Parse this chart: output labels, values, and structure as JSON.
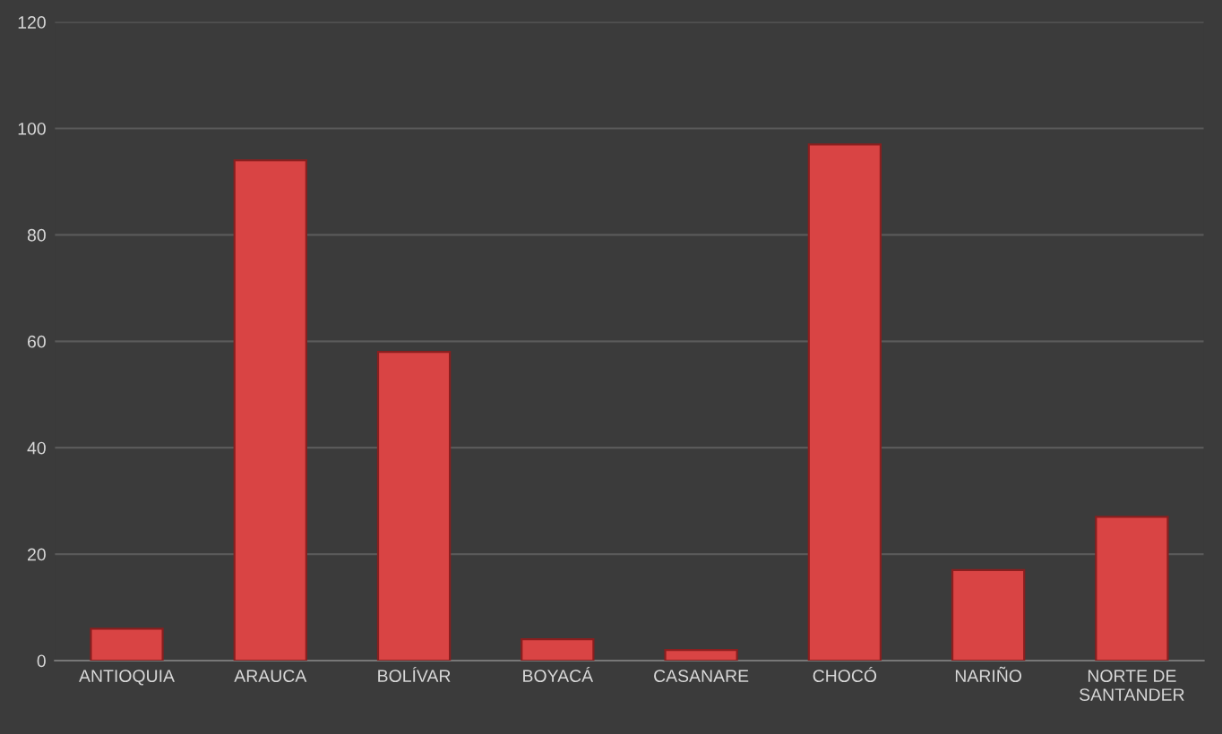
{
  "chart_data": {
    "type": "bar",
    "categories": [
      "ANTIOQUIA",
      "ARAUCA",
      "BOLÍVAR",
      "BOYACÁ",
      "CASANARE",
      "CHOCÓ",
      "NARIÑO",
      "NORTE DE\nSANTANDER"
    ],
    "values": [
      6,
      94,
      58,
      4,
      2,
      97,
      17,
      27
    ],
    "color": "#d94444",
    "ylim": [
      0,
      120
    ],
    "yticks": [
      0,
      20,
      40,
      60,
      80,
      100,
      120
    ],
    "grid": "y"
  }
}
